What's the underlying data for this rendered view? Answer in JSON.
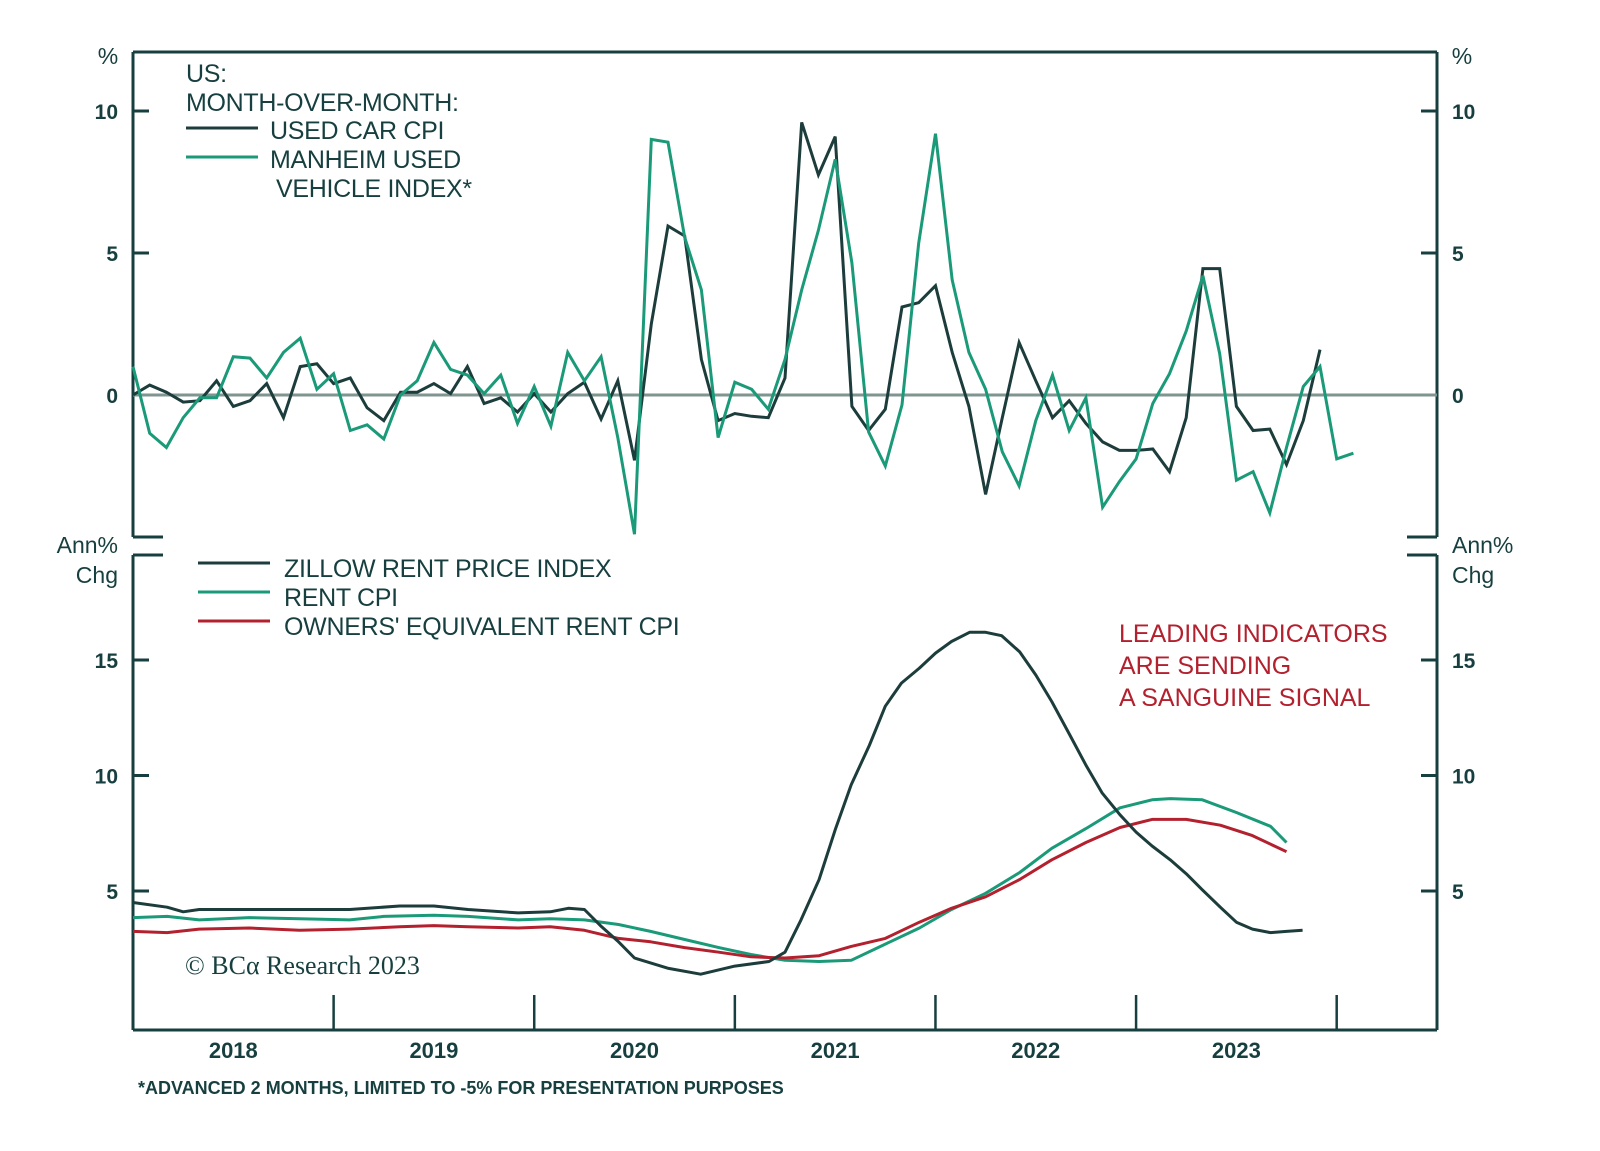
{
  "chart_data": [
    {
      "type": "line",
      "panel": "top",
      "title": "US: MONTH-OVER-MONTH:",
      "title_lines": [
        "US:",
        "MONTH-OVER-MONTH:"
      ],
      "ylabel": "%",
      "ylabel_right": "%",
      "ylim": [
        -5,
        12
      ],
      "yticks": [
        0,
        5,
        10
      ],
      "ytick_labels": [
        "0",
        "5",
        "10"
      ],
      "reference_line": 0,
      "x_start": 2018.0,
      "x_step_months": 1,
      "series": [
        {
          "name": "USED CAR CPI",
          "legend_lines": [
            "USED CAR CPI"
          ],
          "color": "#1c3d3c",
          "values": [
            0.0,
            0.35,
            0.1,
            -0.25,
            -0.2,
            0.5,
            -0.4,
            -0.2,
            0.4,
            -0.8,
            1.0,
            1.1,
            0.4,
            0.6,
            -0.45,
            -0.9,
            0.1,
            0.1,
            0.4,
            0.05,
            1.0,
            -0.3,
            -0.1,
            -0.6,
            0.05,
            -0.6,
            0.05,
            0.45,
            -0.85,
            0.5,
            -2.3,
            2.5,
            5.95,
            5.6,
            1.25,
            -0.9,
            -0.65,
            -0.75,
            -0.8,
            0.6,
            9.6,
            7.75,
            9.1,
            -0.4,
            -1.25,
            -0.5,
            3.1,
            3.25,
            3.85,
            1.5,
            -0.4,
            -3.5,
            -0.8,
            1.85,
            0.5,
            -0.8,
            -0.2,
            -1.0,
            -1.65,
            -1.95,
            -1.95,
            -1.9,
            -2.7,
            -0.8,
            4.45,
            4.45,
            -0.4,
            -1.25,
            -1.2,
            -2.45,
            -0.9,
            1.6
          ]
        },
        {
          "name": "MANHEIM USED VEHICLE INDEX*",
          "legend_lines": [
            "MANHEIM USED",
            "VEHICLE INDEX*"
          ],
          "color": "#1a9a78",
          "values": [
            1.0,
            -1.35,
            -1.85,
            -0.8,
            -0.1,
            -0.1,
            1.35,
            1.3,
            0.6,
            1.5,
            2.0,
            0.2,
            0.75,
            -1.25,
            -1.05,
            -1.55,
            0.0,
            0.5,
            1.85,
            0.9,
            0.7,
            0.05,
            0.7,
            -1.0,
            0.3,
            -1.1,
            1.5,
            0.5,
            1.35,
            -1.5,
            -4.9,
            9.0,
            8.9,
            5.55,
            3.7,
            -1.5,
            0.45,
            0.2,
            -0.5,
            1.25,
            3.7,
            5.8,
            8.3,
            4.65,
            -1.3,
            -2.5,
            -0.35,
            5.35,
            9.2,
            4.05,
            1.5,
            0.2,
            -2.0,
            -3.2,
            -0.9,
            0.7,
            -1.25,
            -0.1,
            -3.95,
            -3.05,
            -2.25,
            -0.3,
            0.75,
            2.25,
            4.2,
            1.45,
            -3.0,
            -2.7,
            -4.15,
            -1.85,
            0.3,
            1.0,
            -2.25,
            -2.05
          ]
        }
      ]
    },
    {
      "type": "line",
      "panel": "bottom",
      "ylabel": "Ann% Chg",
      "ylabel_lines": [
        "Ann%",
        "Chg"
      ],
      "ylim": [
        0.3,
        20
      ],
      "yticks": [
        5,
        10,
        15
      ],
      "ytick_labels": [
        "5",
        "10",
        "15"
      ],
      "series": [
        {
          "name": "ZILLOW RENT PRICE INDEX",
          "color": "#1c3d3c",
          "x": [
            2018.0,
            2018.17,
            2018.25,
            2018.33,
            2018.58,
            2018.83,
            2019.08,
            2019.33,
            2019.5,
            2019.67,
            2019.92,
            2020.08,
            2020.17,
            2020.25,
            2020.33,
            2020.42,
            2020.5,
            2020.67,
            2020.83,
            2021.0,
            2021.17,
            2021.25,
            2021.33,
            2021.42,
            2021.5,
            2021.58,
            2021.67,
            2021.75,
            2021.83,
            2021.92,
            2022.0,
            2022.08,
            2022.17,
            2022.25,
            2022.33,
            2022.42,
            2022.5,
            2022.58,
            2022.67,
            2022.75,
            2022.83,
            2022.92,
            2023.0,
            2023.08,
            2023.17,
            2023.25,
            2023.33,
            2023.42,
            2023.5,
            2023.58,
            2023.67,
            2023.75,
            2023.83
          ],
          "values": [
            4.5,
            4.3,
            4.1,
            4.2,
            4.2,
            4.2,
            4.2,
            4.35,
            4.35,
            4.2,
            4.05,
            4.1,
            4.25,
            4.2,
            3.5,
            2.8,
            2.1,
            1.65,
            1.4,
            1.75,
            1.95,
            2.35,
            3.75,
            5.5,
            7.65,
            9.6,
            11.3,
            13.0,
            14.0,
            14.65,
            15.3,
            15.8,
            16.2,
            16.2,
            16.05,
            15.35,
            14.35,
            13.2,
            11.75,
            10.45,
            9.25,
            8.3,
            7.55,
            6.95,
            6.35,
            5.75,
            5.05,
            4.3,
            3.65,
            3.35,
            3.2,
            3.25,
            3.3
          ]
        },
        {
          "name": "RENT CPI",
          "color": "#1a9a78",
          "x": [
            2018.0,
            2018.17,
            2018.33,
            2018.58,
            2018.83,
            2019.08,
            2019.25,
            2019.5,
            2019.67,
            2019.92,
            2020.08,
            2020.25,
            2020.42,
            2020.58,
            2020.75,
            2020.92,
            2021.08,
            2021.25,
            2021.42,
            2021.58,
            2021.75,
            2021.92,
            2022.08,
            2022.25,
            2022.42,
            2022.58,
            2022.75,
            2022.92,
            2023.08,
            2023.17,
            2023.33,
            2023.5,
            2023.67,
            2023.75
          ],
          "values": [
            3.85,
            3.9,
            3.75,
            3.85,
            3.8,
            3.75,
            3.9,
            3.95,
            3.9,
            3.75,
            3.8,
            3.75,
            3.55,
            3.25,
            2.9,
            2.55,
            2.25,
            2.0,
            1.95,
            2.0,
            2.7,
            3.4,
            4.2,
            4.9,
            5.8,
            6.85,
            7.7,
            8.6,
            8.95,
            9.0,
            8.95,
            8.4,
            7.8,
            7.1
          ]
        },
        {
          "name": "OWNERS' EQUIVALENT RENT CPI",
          "color": "#b3202e",
          "x": [
            2018.0,
            2018.17,
            2018.33,
            2018.58,
            2018.83,
            2019.08,
            2019.33,
            2019.5,
            2019.67,
            2019.92,
            2020.08,
            2020.25,
            2020.42,
            2020.58,
            2020.75,
            2020.92,
            2021.08,
            2021.25,
            2021.42,
            2021.58,
            2021.75,
            2021.92,
            2022.08,
            2022.25,
            2022.42,
            2022.58,
            2022.75,
            2022.92,
            2023.08,
            2023.25,
            2023.42,
            2023.58,
            2023.75
          ],
          "values": [
            3.25,
            3.2,
            3.35,
            3.4,
            3.3,
            3.35,
            3.45,
            3.5,
            3.45,
            3.4,
            3.45,
            3.3,
            2.95,
            2.8,
            2.55,
            2.35,
            2.15,
            2.1,
            2.2,
            2.6,
            2.95,
            3.65,
            4.25,
            4.75,
            5.5,
            6.35,
            7.1,
            7.75,
            8.1,
            8.1,
            7.85,
            7.4,
            6.7
          ]
        }
      ],
      "annotation": [
        "LEADING INDICATORS",
        "ARE SENDING",
        "A SANGUINE SIGNAL"
      ]
    }
  ],
  "x_axis": {
    "range": [
      2018.0,
      2024.5
    ],
    "year_labels": [
      "2018",
      "2019",
      "2020",
      "2021",
      "2022",
      "2023"
    ]
  },
  "footnote": "*ADVANCED 2 MONTHS, LIMITED TO -5% FOR PRESENTATION PURPOSES",
  "copyright": "© BCα Research 2023",
  "colors": {
    "axis": "#173f3f",
    "zero_line": "#7f9590",
    "dark_series": "#1c3d3c",
    "green_series": "#1a9a78",
    "red_series": "#b3202e"
  }
}
